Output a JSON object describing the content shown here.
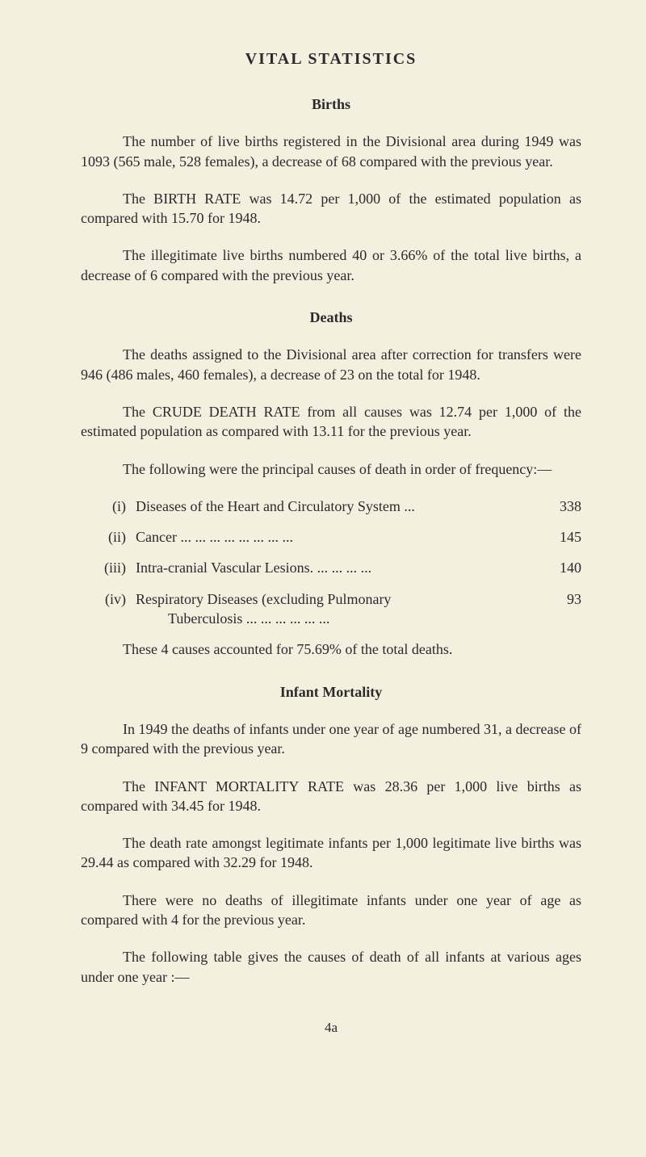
{
  "title": "VITAL  STATISTICS",
  "sections": {
    "births": {
      "heading": "Births",
      "p1": "The number of live births registered in the Divisional area during 1949 was 1093 (565 male, 528 females), a decrease of 68 compared with the previous year.",
      "p2": "The BIRTH RATE was 14.72 per 1,000 of the estimated population as compared with 15.70 for 1948.",
      "p3": "The illegitimate live births numbered 40 or 3.66% of the total live births, a decrease of 6 compared with the previous year."
    },
    "deaths": {
      "heading": "Deaths",
      "p1": "The deaths assigned to the Divisional area after correction for transfers were 946 (486 males, 460 females), a decrease of 23 on the total for 1948.",
      "p2": "The CRUDE DEATH RATE from all causes was 12.74 per 1,000 of the estimated population as compared with 13.11 for the previous year.",
      "intro": "The following were the principal causes of death in order of frequency:—",
      "items": [
        {
          "roman": "(i)",
          "text": "Diseases of the Heart and Circulatory System   ...",
          "value": "338"
        },
        {
          "roman": "(ii)",
          "text": "Cancer            ...  ...  ...  ...  ...  ...  ...  ...",
          "value": "145"
        },
        {
          "roman": "(iii)",
          "text": "Intra-cranial Vascular Lesions.      ...  ...  ...  ...",
          "value": "140"
        },
        {
          "roman": "(iv)",
          "text": "Respiratory   Diseases   (excluding   Pulmonary",
          "sub": "Tuberculosis          ...  ...  ...  ...  ...  ...",
          "value": "93"
        }
      ],
      "summary": "These 4 causes accounted for 75.69% of the total deaths."
    },
    "infant": {
      "heading": "Infant   Mortality",
      "p1": "In 1949 the deaths of infants under one year of age numbered 31, a decrease of 9 compared with the previous year.",
      "p2": "The INFANT MORTALITY RATE was 28.36 per 1,000 live births as compared with 34.45 for 1948.",
      "p3": "The death rate amongst legitimate infants per 1,000 legitimate live births was 29.44 as compared with 32.29 for 1948.",
      "p4": "There were no deaths of illegitimate infants under one year of age as compared with 4 for the previous year.",
      "p5": "The following table gives the causes of death of all infants at various ages under one year :—"
    }
  },
  "page_number": "4a"
}
